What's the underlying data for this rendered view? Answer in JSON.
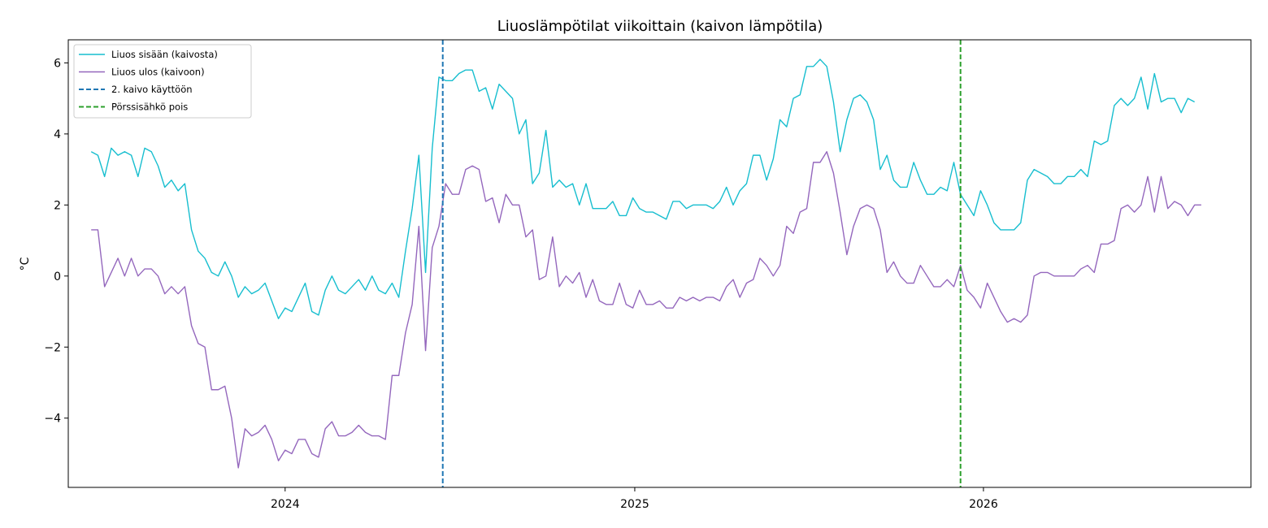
{
  "chart_data": {
    "type": "line",
    "title": "Liuoslämpötilat viikoittain (kaivon lämpötila)",
    "xlabel": "",
    "ylabel": "°C",
    "x_start": "2023-06-12",
    "x_step_days": 7,
    "xlim": [
      "2023-05-19",
      "2026-10-08"
    ],
    "ylim": [
      -5.95,
      6.65
    ],
    "y_ticks": [
      -4,
      -2,
      0,
      2,
      4,
      6
    ],
    "y_tick_labels": [
      "−4",
      "−2",
      "0",
      "2",
      "4",
      "6"
    ],
    "x_ticks": [
      "2024-01-01",
      "2025-01-01",
      "2026-01-01"
    ],
    "x_tick_labels": [
      "2024",
      "2025",
      "2026"
    ],
    "grid": false,
    "legend_position": "top-left",
    "series": [
      {
        "name": "Liuos sisään (kaivosta)",
        "color": "#17becf",
        "values": [
          3.5,
          3.4,
          2.8,
          3.6,
          3.4,
          3.5,
          3.4,
          2.8,
          3.6,
          3.5,
          3.1,
          2.5,
          2.7,
          2.4,
          2.6,
          1.3,
          0.7,
          0.5,
          0.1,
          0.0,
          0.4,
          0.0,
          -0.6,
          -0.3,
          -0.5,
          -0.4,
          -0.2,
          -0.7,
          -1.2,
          -0.9,
          -1.0,
          -0.6,
          -0.2,
          -1.0,
          -1.1,
          -0.4,
          0.0,
          -0.4,
          -0.5,
          -0.3,
          -0.1,
          -0.4,
          0.0,
          -0.4,
          -0.5,
          -0.2,
          -0.6,
          0.7,
          1.9,
          3.4,
          0.1,
          3.6,
          5.6,
          5.5,
          5.5,
          5.7,
          5.8,
          5.8,
          5.2,
          5.3,
          4.7,
          5.4,
          5.2,
          5.0,
          4.0,
          4.4,
          2.6,
          2.9,
          4.1,
          2.5,
          2.7,
          2.5,
          2.6,
          2.0,
          2.6,
          1.9,
          1.9,
          1.9,
          2.1,
          1.7,
          1.7,
          2.2,
          1.9,
          1.8,
          1.8,
          1.7,
          1.6,
          2.1,
          2.1,
          1.9,
          2.0,
          2.0,
          2.0,
          1.9,
          2.1,
          2.5,
          2.0,
          2.4,
          2.6,
          3.4,
          3.4,
          2.7,
          3.3,
          4.4,
          4.2,
          5.0,
          5.1,
          5.9,
          5.9,
          6.1,
          5.9,
          4.9,
          3.5,
          4.4,
          5.0,
          5.1,
          4.9,
          4.4,
          3.0,
          3.4,
          2.7,
          2.5,
          2.5,
          3.2,
          2.7,
          2.3,
          2.3,
          2.5,
          2.4,
          3.2,
          2.3,
          2.0,
          1.7,
          2.4,
          2.0,
          1.5,
          1.3,
          1.3,
          1.3,
          1.5,
          2.7,
          3.0,
          2.9,
          2.8,
          2.6,
          2.6,
          2.8,
          2.8,
          3.0,
          2.8,
          3.8,
          3.7,
          3.8,
          4.8,
          5.0,
          4.8,
          5.0,
          5.6,
          4.7,
          5.7,
          4.9,
          5.0,
          5.0,
          4.6,
          5.0,
          4.9
        ]
      },
      {
        "name": "Liuos ulos (kaivoon)",
        "color": "#9467bd",
        "values": [
          1.3,
          1.3,
          -0.3,
          0.1,
          0.5,
          0.0,
          0.5,
          0.0,
          0.2,
          0.2,
          0.0,
          -0.5,
          -0.3,
          -0.5,
          -0.3,
          -1.4,
          -1.9,
          -2.0,
          -3.2,
          -3.2,
          -3.1,
          -4.0,
          -5.4,
          -4.3,
          -4.5,
          -4.4,
          -4.2,
          -4.6,
          -5.2,
          -4.9,
          -5.0,
          -4.6,
          -4.6,
          -5.0,
          -5.1,
          -4.3,
          -4.1,
          -4.5,
          -4.5,
          -4.4,
          -4.2,
          -4.4,
          -4.5,
          -4.5,
          -4.6,
          -2.8,
          -2.8,
          -1.6,
          -0.8,
          1.4,
          -2.1,
          0.8,
          1.4,
          2.6,
          2.3,
          2.3,
          3.0,
          3.1,
          3.0,
          2.1,
          2.2,
          1.5,
          2.3,
          2.0,
          2.0,
          1.1,
          1.3,
          -0.1,
          0.0,
          1.1,
          -0.3,
          0.0,
          -0.2,
          0.1,
          -0.6,
          -0.1,
          -0.7,
          -0.8,
          -0.8,
          -0.2,
          -0.8,
          -0.9,
          -0.4,
          -0.8,
          -0.8,
          -0.7,
          -0.9,
          -0.9,
          -0.6,
          -0.7,
          -0.6,
          -0.7,
          -0.6,
          -0.6,
          -0.7,
          -0.3,
          -0.1,
          -0.6,
          -0.2,
          -0.1,
          0.5,
          0.3,
          0.0,
          0.3,
          1.4,
          1.2,
          1.8,
          1.9,
          3.2,
          3.2,
          3.5,
          2.9,
          1.8,
          0.6,
          1.4,
          1.9,
          2.0,
          1.9,
          1.3,
          0.1,
          0.4,
          0.0,
          -0.2,
          -0.2,
          0.3,
          0.0,
          -0.3,
          -0.3,
          -0.1,
          -0.3,
          0.3,
          -0.4,
          -0.6,
          -0.9,
          -0.2,
          -0.6,
          -1.0,
          -1.3,
          -1.2,
          -1.3,
          -1.1,
          0.0,
          0.1,
          0.1,
          0.0,
          0.0,
          0.0,
          0.0,
          0.2,
          0.3,
          0.1,
          0.9,
          0.9,
          1.0,
          1.9,
          2.0,
          1.8,
          2.0,
          2.8,
          1.8,
          2.8,
          1.9,
          2.1,
          2.0,
          1.7,
          2.0,
          2.0
        ]
      }
    ],
    "vlines": [
      {
        "name": "2. kaivo käyttöön",
        "date": "2024-06-14",
        "color": "#1f77b4"
      },
      {
        "name": "Pörssisähkö pois",
        "date": "2025-12-08",
        "color": "#2ca02c"
      }
    ]
  }
}
